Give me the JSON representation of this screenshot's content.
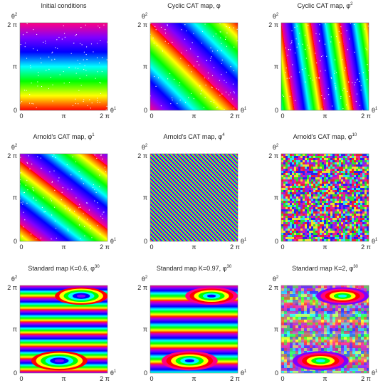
{
  "panels": [
    {
      "title": {
        "text": "Initial conditions",
        "sup": null
      }
    },
    {
      "title": {
        "text": "Cyclic CAT map, φ",
        "sup": null
      }
    },
    {
      "title": {
        "text": "Cyclic CAT map, φ",
        "sup": "2"
      }
    },
    {
      "title": {
        "text": "Arnold's CAT map, φ",
        "sup": "1"
      }
    },
    {
      "title": {
        "text": "Arnold's CAT map, φ",
        "sup": "4"
      }
    },
    {
      "title": {
        "text": "Arnold's CAT map, φ",
        "sup": "10"
      }
    },
    {
      "title": {
        "text": "Standard map K=0.6, φ",
        "sup": "30"
      }
    },
    {
      "title": {
        "text": "Standard map K=0.97, φ",
        "sup": "30"
      }
    },
    {
      "title": {
        "text": "Standard map K=2, φ",
        "sup": "30"
      }
    }
  ],
  "axes": {
    "ticks": [
      "0",
      "π",
      "2 π"
    ],
    "x_label": {
      "text": "θ",
      "sup": "1"
    },
    "y_label": {
      "text": "θ",
      "sup": "2"
    }
  }
}
